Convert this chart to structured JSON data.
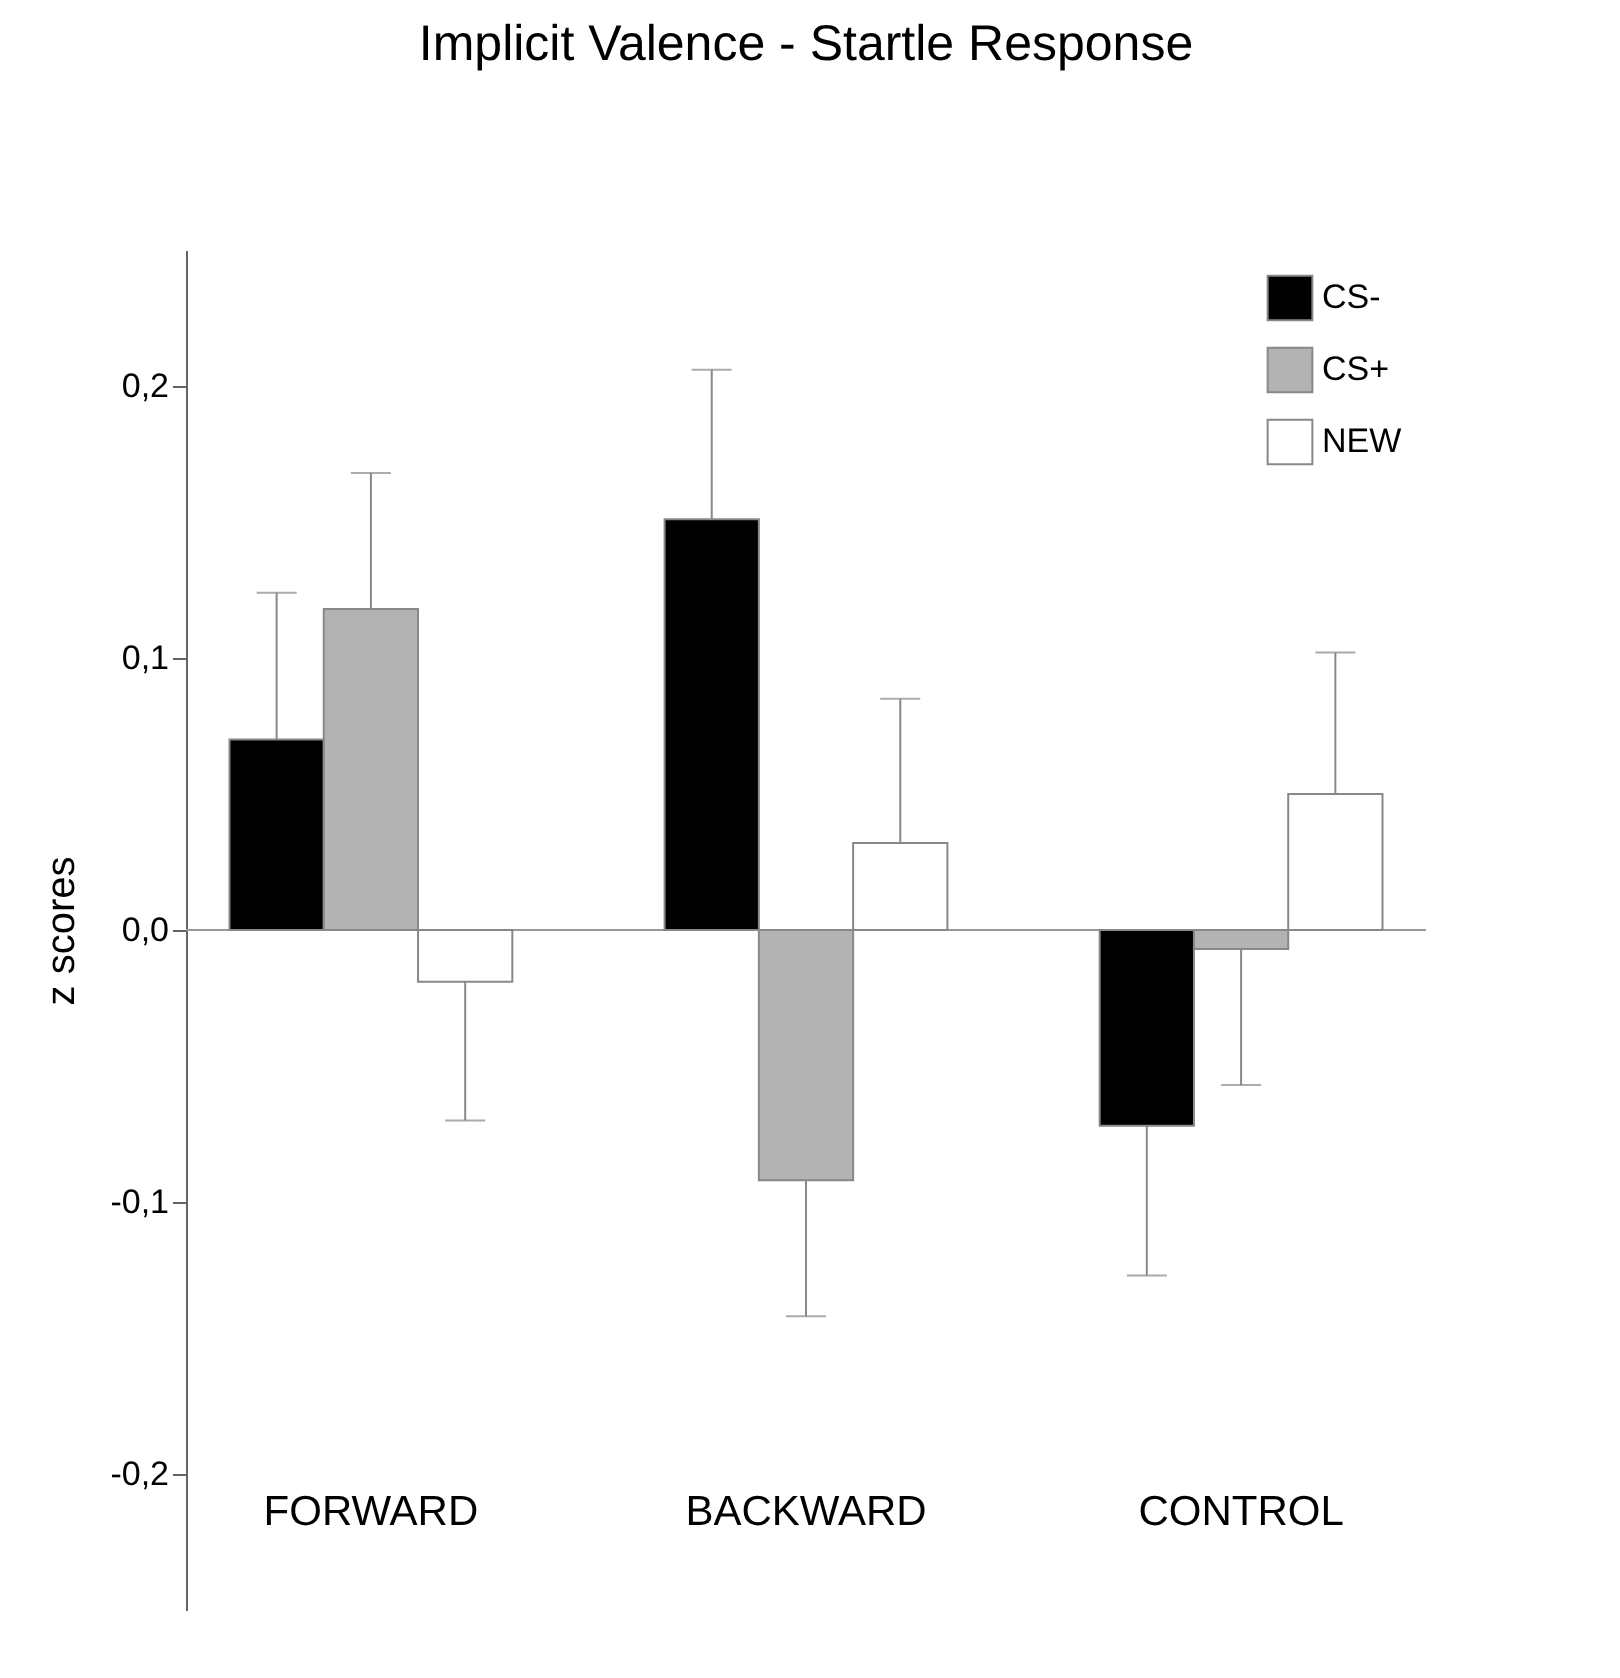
{
  "chart_data": {
    "type": "bar",
    "title": "Implicit Valence - Startle Response",
    "ylabel": "z scores",
    "categories": [
      "FORWARD",
      "BACKWARD",
      "CONTROL"
    ],
    "series": [
      {
        "name": "CS-",
        "color": "#000000",
        "values": [
          0.07,
          0.151,
          -0.072
        ],
        "errors": [
          [
            0.07,
            0.124
          ],
          [
            0.151,
            0.206
          ],
          [
            -0.127,
            -0.072
          ]
        ]
      },
      {
        "name": "CS+",
        "color": "#b3b3b3",
        "values": [
          0.118,
          -0.092,
          -0.007
        ],
        "errors": [
          [
            0.118,
            0.168
          ],
          [
            -0.142,
            -0.092
          ],
          [
            -0.057,
            -0.007
          ]
        ]
      },
      {
        "name": "NEW",
        "color": "#ffffff",
        "values": [
          -0.019,
          0.032,
          0.05
        ],
        "errors": [
          [
            -0.07,
            -0.019
          ],
          [
            0.032,
            0.085
          ],
          [
            0.05,
            0.102
          ]
        ]
      }
    ],
    "ylim": [
      -0.25,
      0.25
    ],
    "yticks": [
      {
        "value": -0.2,
        "label": "-0,2"
      },
      {
        "value": -0.1,
        "label": "-0,1"
      },
      {
        "value": 0,
        "label": "0,0"
      },
      {
        "value": 0.1,
        "label": "0,1"
      },
      {
        "value": 0.2,
        "label": "0,2"
      }
    ],
    "ref_lines": [
      {
        "axis": "y",
        "value": 0,
        "color": "#999999"
      }
    ],
    "legend": "top right"
  }
}
